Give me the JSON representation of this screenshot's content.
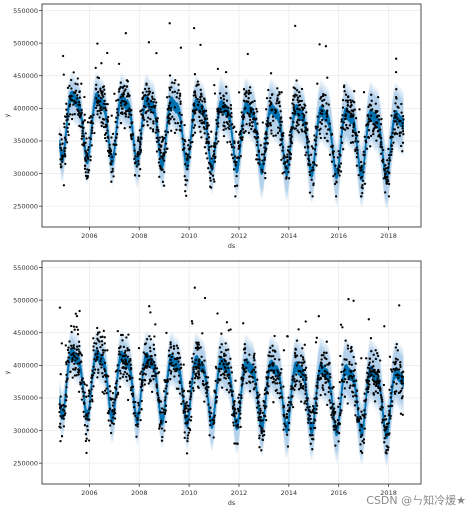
{
  "chart_data": [
    {
      "type": "scatter",
      "title": "",
      "xlabel": "ds",
      "ylabel": "y",
      "x_ticks": [
        "2006",
        "2008",
        "2010",
        "2012",
        "2014",
        "2016",
        "2018"
      ],
      "y_ticks": [
        "250000",
        "300000",
        "350000",
        "400000",
        "450000",
        "500000",
        "550000"
      ],
      "xlim": [
        2004.1,
        2019.3
      ],
      "ylim": [
        218000,
        560000
      ],
      "grid": true,
      "colors": {
        "points": "#000000",
        "forecast": "#0072B2",
        "interval": "#b3d1ea"
      },
      "series": [
        {
          "kind": "observed points",
          "x_range": [
            2004.8,
            2018.6
          ],
          "y_range": [
            265000,
            548000
          ]
        },
        {
          "kind": "forecast line",
          "trend_start": 385000,
          "trend_end": 350000,
          "seasonal_amplitude": 45000
        },
        {
          "kind": "uncertainty interval",
          "half_width": 30000
        }
      ]
    },
    {
      "type": "scatter",
      "title": "",
      "xlabel": "ds",
      "ylabel": "y",
      "x_ticks": [
        "2006",
        "2008",
        "2010",
        "2012",
        "2014",
        "2016",
        "2018"
      ],
      "y_ticks": [
        "250000",
        "300000",
        "350000",
        "400000",
        "450000",
        "500000",
        "550000"
      ],
      "xlim": [
        2004.1,
        2019.3
      ],
      "ylim": [
        218000,
        560000
      ],
      "grid": true,
      "colors": {
        "points": "#000000",
        "forecast": "#0072B2",
        "interval": "#b3d1ea"
      },
      "series": [
        {
          "kind": "observed points",
          "x_range": [
            2004.8,
            2018.6
          ],
          "y_range": [
            265000,
            548000
          ]
        },
        {
          "kind": "forecast line",
          "trend_start": 385000,
          "trend_end": 350000,
          "seasonal_amplitude": 45000
        },
        {
          "kind": "uncertainty interval",
          "half_width": 30000
        }
      ]
    }
  ],
  "watermark": "CSDN @ㄣ知冷煖★"
}
